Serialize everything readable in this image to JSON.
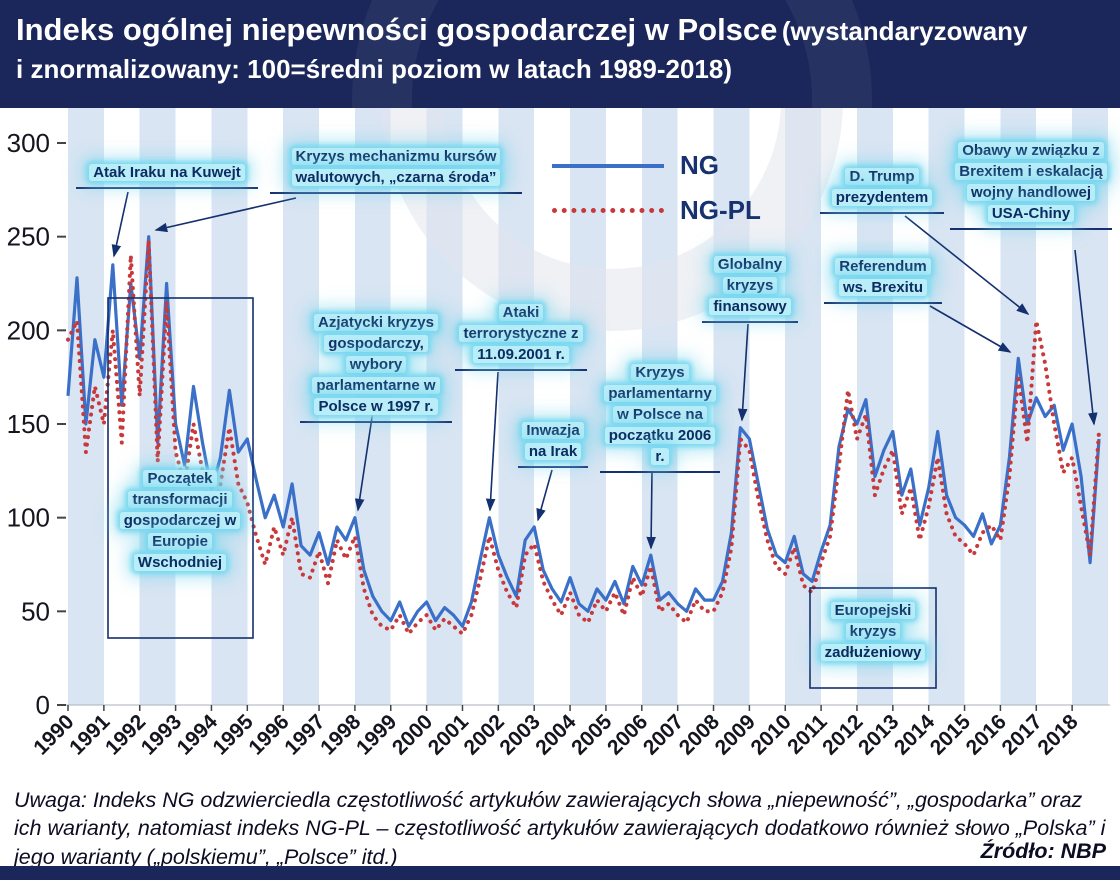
{
  "header": {
    "title_main": "Indeks ogólnej niepewności gospodarczej w Polsce",
    "title_paren_start": "(wystandaryzowany",
    "title_paren_end": "i znormalizowany: 100=średni poziom w latach 1989-2018)"
  },
  "legend": {
    "items": [
      {
        "label": "NG",
        "color": "#3a70c8",
        "style": "solid"
      },
      {
        "label": "NG-PL",
        "color": "#c8393b",
        "style": "dotted"
      }
    ]
  },
  "annotations": {
    "atak_iraku": {
      "text": "Atak Iraku na Kuwejt"
    },
    "czarna_sroda": {
      "text": "Kryzys mechanizmu kursów walutowych, „czarna środa”"
    },
    "transformacja": {
      "text": "Początek transformacji gospodarczej w Europie Wschodniej"
    },
    "azjatycki": {
      "text": "Azjatycki kryzys gospodarczy, wybory parlamentarne w Polsce w 1997 r."
    },
    "ataki_terrorystyczne": {
      "text": "Ataki terrorystyczne z 11.09.2001 r."
    },
    "inwazja_irak": {
      "text": "Inwazja na Irak"
    },
    "kryzys_parlamentarny": {
      "text": "Kryzys parlamentarny w Polsce na początku 2006 r."
    },
    "globalny_kryzys": {
      "text": "Globalny kryzys finansowy"
    },
    "trump": {
      "text": "D. Trump prezydentem"
    },
    "referendum_brexit": {
      "text": "Referendum ws. Brexitu"
    },
    "obawy_brexit": {
      "text": "Obawy w związku z Brexitem i eskalacją wojny handlowej USA-Chiny"
    },
    "europejski_kryzys": {
      "text": "Europejski kryzys zadłużeniowy"
    }
  },
  "footer": {
    "note": "Uwaga: Indeks NG odzwierciedla częstotliwość artykułów zawierających słowa „niepewność”, „gospodarka” oraz ich warianty, natomiast indeks NG-PL – częstotliwość artykułów zawierających dodatkowo również słowo „Polska” i jego warianty („polskiemu”, „Polsce” itd.)",
    "source": "Źródło: NBP"
  },
  "chart_data": {
    "type": "line",
    "title": "Indeks ogólnej niepewności gospodarczej w Polsce (wystandaryzowany i znormalizowany: 100=średni poziom w latach 1989-2018)",
    "xlabel": "",
    "ylabel": "",
    "ylim": [
      0,
      300
    ],
    "y_ticks": [
      0,
      50,
      100,
      150,
      200,
      250,
      300
    ],
    "grid": false,
    "legend_position": "top-center",
    "source": "NBP",
    "years_span": 29,
    "points_per_year": 4,
    "x_tick_labels": [
      "1990",
      "1991",
      "1992",
      "1993",
      "1994",
      "1995",
      "1996",
      "1997",
      "1998",
      "1999",
      "2000",
      "2001",
      "2002",
      "2003",
      "2004",
      "2005",
      "2006",
      "2007",
      "2008",
      "2009",
      "2010",
      "2011",
      "2012",
      "2013",
      "2014",
      "2015",
      "2016",
      "2017",
      "2018"
    ],
    "series": [
      {
        "name": "NG",
        "color": "#3a70c8",
        "dash": "solid",
        "values": [
          165,
          228,
          150,
          195,
          175,
          235,
          160,
          225,
          185,
          250,
          140,
          225,
          150,
          128,
          170,
          140,
          115,
          132,
          168,
          135,
          142,
          120,
          100,
          112,
          95,
          118,
          85,
          80,
          92,
          75,
          95,
          88,
          100,
          72,
          58,
          50,
          45,
          55,
          42,
          50,
          55,
          45,
          52,
          48,
          42,
          55,
          78,
          100,
          80,
          68,
          58,
          88,
          95,
          72,
          62,
          55,
          68,
          54,
          50,
          62,
          56,
          66,
          54,
          74,
          64,
          80,
          56,
          60,
          54,
          50,
          62,
          56,
          56,
          66,
          92,
          148,
          142,
          118,
          94,
          80,
          76,
          90,
          70,
          66,
          82,
          96,
          138,
          158,
          150,
          163,
          122,
          136,
          146,
          112,
          126,
          96,
          116,
          146,
          112,
          100,
          96,
          90,
          102,
          86,
          96,
          132,
          185,
          150,
          164,
          154,
          160,
          136,
          150,
          122,
          76,
          142
        ]
      },
      {
        "name": "NG-PL",
        "color": "#c8393b",
        "dash": "dotted",
        "values": [
          195,
          205,
          135,
          170,
          150,
          200,
          140,
          240,
          165,
          248,
          130,
          215,
          135,
          118,
          150,
          125,
          100,
          118,
          148,
          118,
          108,
          90,
          75,
          95,
          80,
          100,
          70,
          68,
          82,
          65,
          88,
          78,
          90,
          62,
          48,
          42,
          40,
          48,
          38,
          44,
          48,
          40,
          46,
          42,
          38,
          48,
          68,
          90,
          72,
          60,
          52,
          80,
          86,
          66,
          56,
          48,
          60,
          48,
          44,
          56,
          50,
          60,
          48,
          68,
          58,
          74,
          50,
          54,
          48,
          44,
          56,
          50,
          50,
          60,
          84,
          142,
          136,
          110,
          88,
          74,
          70,
          84,
          64,
          60,
          76,
          90,
          128,
          168,
          142,
          155,
          112,
          126,
          136,
          102,
          116,
          88,
          106,
          132,
          102,
          90,
          86,
          80,
          92,
          96,
          88,
          122,
          176,
          140,
          205,
          182,
          150,
          124,
          132,
          106,
          80,
          146
        ]
      }
    ]
  }
}
